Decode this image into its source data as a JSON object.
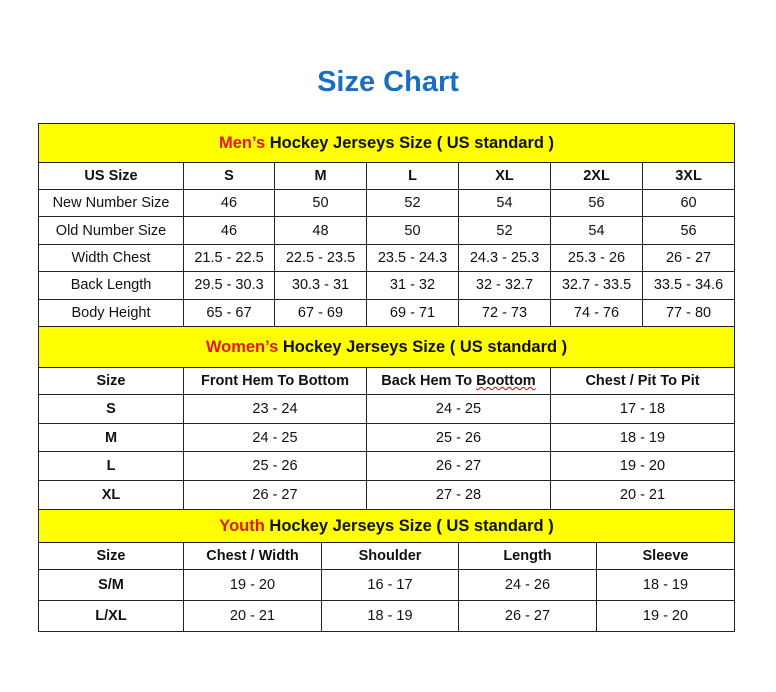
{
  "title": "Size Chart",
  "colors": {
    "title": "#1a6fc0",
    "section_bg": "#ffff00",
    "section_accent": "#e8141b"
  },
  "men": {
    "heading_accent": "Men’s",
    "heading_rest": " Hockey Jerseys Size ( US standard )",
    "columns": [
      "US Size",
      "S",
      "M",
      "L",
      "XL",
      "2XL",
      "3XL"
    ],
    "rows": [
      [
        "New Number Size",
        "46",
        "50",
        "52",
        "54",
        "56",
        "60"
      ],
      [
        "Old Number Size",
        "46",
        "48",
        "50",
        "52",
        "54",
        "56"
      ],
      [
        "Width Chest",
        "21.5 - 22.5",
        "22.5 - 23.5",
        "23.5 - 24.3",
        "24.3 - 25.3",
        "25.3 - 26",
        "26 - 27"
      ],
      [
        "Back Length",
        "29.5 - 30.3",
        "30.3 - 31",
        "31 - 32",
        "32 - 32.7",
        "32.7 - 33.5",
        "33.5 - 34.6"
      ],
      [
        "Body Height",
        "65 - 67",
        "67 - 69",
        "69 - 71",
        "72 - 73",
        "74 - 76",
        "77 - 80"
      ]
    ]
  },
  "women": {
    "heading_accent": "Women’s",
    "heading_rest": " Hockey Jerseys Size ( US standard )",
    "columns": [
      "Size",
      "Front Hem To Bottom",
      "Back Hem To Boottom",
      "Chest / Pit To Pit"
    ],
    "rows": [
      [
        "S",
        "23 - 24",
        "24 - 25",
        "17 - 18"
      ],
      [
        "M",
        "24 - 25",
        "25 - 26",
        "18 - 19"
      ],
      [
        "L",
        "25 - 26",
        "26 - 27",
        "19 - 20"
      ],
      [
        "XL",
        "26 - 27",
        "27 - 28",
        "20 - 21"
      ]
    ]
  },
  "youth": {
    "heading_accent": "Youth",
    "heading_rest": " Hockey Jerseys Size ( US standard )",
    "columns": [
      "Size",
      "Chest / Width",
      "Shoulder",
      "Length",
      "Sleeve"
    ],
    "rows": [
      [
        "S/M",
        "19 - 20",
        "16 - 17",
        "24 - 26",
        "18 - 19"
      ],
      [
        "L/XL",
        "20 - 21",
        "18 - 19",
        "26 - 27",
        "19 - 20"
      ]
    ]
  }
}
